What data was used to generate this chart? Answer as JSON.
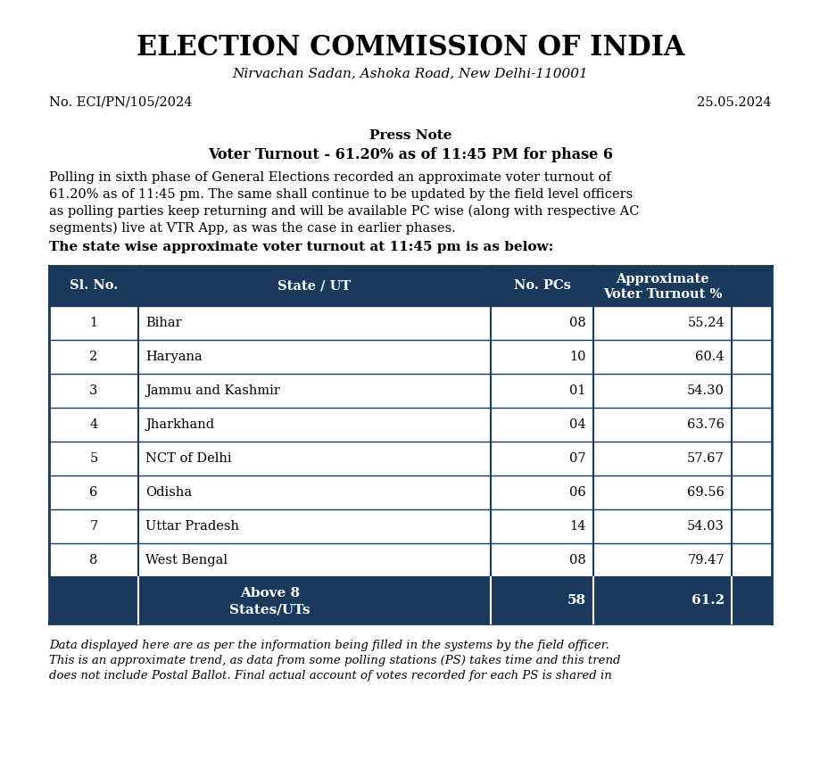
{
  "title": "ELECTION COMMISSION OF INDIA",
  "subtitle": "Nirvachan Sadan, Ashoka Road, New Delhi-110001",
  "ref_no": "No. ECI/PN/105/2024",
  "date": "25.05.2024",
  "press_note_label": "Press Note",
  "voter_turnout_heading": "Voter Turnout - 61.20% as of 11:45 PM for phase 6",
  "body_text": "Polling in sixth phase of General Elections recorded an approximate voter turnout of 61.20% as of 11:45 pm. The same shall continue to be updated by the field level officers as polling parties keep returning and will be available PC wise (along with respective AC segments) live at VTR App, as was the case in earlier phases.",
  "table_intro": "The state wise approximate voter turnout at 11:45 pm is as below:",
  "table_headers": [
    "Sl. No.",
    "State / UT",
    "No. PCs",
    "Approximate\nVoter Turnout %"
  ],
  "table_data": [
    [
      "1",
      "Bihar",
      "08",
      "55.24"
    ],
    [
      "2",
      "Haryana",
      "10",
      "60.4"
    ],
    [
      "3",
      "Jammu and Kashmir",
      "01",
      "54.30"
    ],
    [
      "4",
      "Jharkhand",
      "04",
      "63.76"
    ],
    [
      "5",
      "NCT of Delhi",
      "07",
      "57.67"
    ],
    [
      "6",
      "Odisha",
      "06",
      "69.56"
    ],
    [
      "7",
      "Uttar Pradesh",
      "14",
      "54.03"
    ],
    [
      "8",
      "West Bengal",
      "08",
      "79.47"
    ]
  ],
  "footer_row": [
    "Above 8\nStates/UTs",
    "58",
    "61.2"
  ],
  "footer_note": "Data displayed here are as per the information being filled in the systems by the field officer.\nThis is an approximate trend, as data from some polling stations (PS) takes time and this trend\ndoes not include Postal Ballot. Final actual account of votes recorded for each PS is shared in",
  "header_bg_color": "#1a3a5c",
  "header_text_color": "#ffffff",
  "footer_bg_color": "#1a3a5c",
  "footer_text_color": "#ffffff",
  "row_bg_color": "#ffffff",
  "row_text_color": "#000000",
  "border_color": "#1a3a5c",
  "bg_color": "#ffffff"
}
